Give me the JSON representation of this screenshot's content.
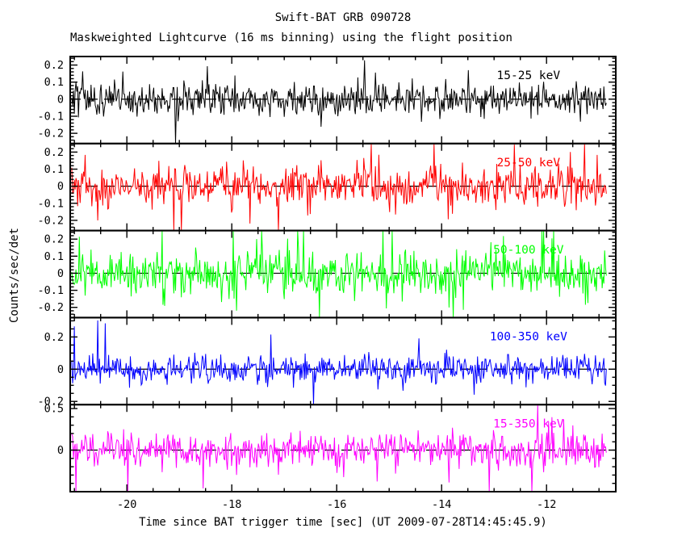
{
  "chart_data": {
    "type": "line",
    "title": "Swift-BAT GRB 090728",
    "subtitle": "Maskweighted Lightcurve (16 ms binning) using the flight position",
    "xlabel": "Time since BAT trigger time [sec] (UT 2009-07-28T14:45:45.9)",
    "ylabel": "Counts/sec/det",
    "grid": false,
    "legend": "none",
    "zero_line_style": "dashed",
    "xlim": [
      -21.08,
      -10.68
    ],
    "x_major_ticks": [
      -20,
      -18,
      -16,
      -14,
      -12
    ],
    "x_tick_labels": [
      "-20",
      "-18",
      "-16",
      "-14",
      "-12"
    ],
    "x_minor_step": 0.5,
    "x_data_range": [
      -21.05,
      -10.86
    ],
    "bin_width_sec": 0.016,
    "panels": [
      {
        "name": "15-25 keV",
        "color": "#000000",
        "ylim": [
          -0.26,
          0.25
        ],
        "y_major_ticks": [
          0.2,
          0.1,
          0,
          -0.1,
          -0.2
        ],
        "y_tick_labels": [
          "0.2",
          "0.1",
          "0",
          "-0.1",
          "-0.2"
        ],
        "y_minor_step": 0.02,
        "noise": {
          "mean": 0,
          "sigma": 0.05,
          "spike_prob": 0.05,
          "spike_scale": 2.1,
          "seed": 101,
          "n_points": 640
        }
      },
      {
        "name": "25-50 keV",
        "color": "#ff0000",
        "ylim": [
          -0.26,
          0.25
        ],
        "y_major_ticks": [
          0.2,
          0.1,
          0,
          -0.1,
          -0.2
        ],
        "y_tick_labels": [
          "0.2",
          "0.1",
          "0",
          "-0.1",
          "-0.2"
        ],
        "y_minor_step": 0.02,
        "noise": {
          "mean": 0,
          "sigma": 0.055,
          "spike_prob": 0.09,
          "spike_scale": 2.4,
          "seed": 202,
          "n_points": 640
        }
      },
      {
        "name": "50-100 keV",
        "color": "#00ff00",
        "ylim": [
          -0.26,
          0.25
        ],
        "y_major_ticks": [
          0.2,
          0.1,
          0,
          -0.1,
          -0.2
        ],
        "y_tick_labels": [
          "0.2",
          "0.1",
          "0",
          "-0.1",
          "-0.2"
        ],
        "y_minor_step": 0.02,
        "noise": {
          "mean": 0,
          "sigma": 0.06,
          "spike_prob": 0.1,
          "spike_scale": 2.4,
          "seed": 303,
          "n_points": 640
        }
      },
      {
        "name": "100-350 keV",
        "color": "#0000ff",
        "ylim": [
          -0.22,
          0.32
        ],
        "y_major_ticks": [
          0.2,
          0,
          -0.2
        ],
        "y_tick_labels": [
          "0.2",
          "0",
          "-0.2"
        ],
        "y_minor_step": 0.05,
        "noise": {
          "mean": 0,
          "sigma": 0.045,
          "spike_prob": 0.05,
          "spike_scale": 2.7,
          "seed": 404,
          "n_points": 640
        }
      },
      {
        "name": "15-350 keV",
        "color": "#ff00ff",
        "ylim": [
          -0.5,
          0.547
        ],
        "y_major_ticks": [
          0.5,
          0,
          -0.5
        ],
        "y_tick_labels": [
          "0.5",
          "0",
          ""
        ],
        "y_minor_step": 0.1,
        "noise": {
          "mean": 0,
          "sigma": 0.11,
          "spike_prob": 0.06,
          "spike_scale": 2.2,
          "seed": 505,
          "n_points": 640
        }
      }
    ]
  }
}
